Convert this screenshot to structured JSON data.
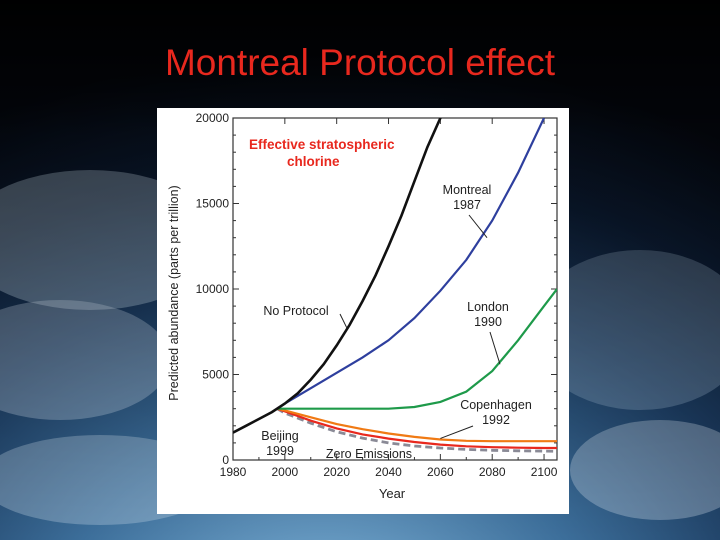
{
  "slide": {
    "title": "Montreal Protocol effect"
  },
  "colors": {
    "title": "#e8281e",
    "chart_title": "#e8281e"
  },
  "chart_data": {
    "type": "line",
    "title": "Effective stratospheric chlorine",
    "xlabel": "Year",
    "ylabel": "Predicted abundance (parts per trillion)",
    "xlim": [
      1980,
      2105
    ],
    "ylim": [
      0,
      20000
    ],
    "x_ticks": [
      "1980",
      "2000",
      "2020",
      "2040",
      "2060",
      "2080",
      "2100"
    ],
    "y_ticks": [
      "0",
      "5000",
      "10000",
      "15000",
      "20000"
    ],
    "series": [
      {
        "name": "No Protocol",
        "color": "#111111",
        "x": [
          1980,
          1985,
          1990,
          1995,
          2000,
          2005,
          2010,
          2015,
          2020,
          2025,
          2030,
          2035,
          2040,
          2045,
          2050,
          2055,
          2060,
          2063
        ],
        "y": [
          1600,
          2000,
          2400,
          2800,
          3300,
          3900,
          4700,
          5600,
          6700,
          7900,
          9300,
          10800,
          12500,
          14300,
          16300,
          18300,
          20000,
          21000
        ]
      },
      {
        "name": "Montreal 1987",
        "color": "#2e3f9e",
        "x": [
          1997,
          2000,
          2010,
          2020,
          2030,
          2040,
          2050,
          2060,
          2070,
          2080,
          2090,
          2100
        ],
        "y": [
          3000,
          3300,
          4200,
          5100,
          6000,
          7000,
          8300,
          9900,
          11700,
          14000,
          16800,
          20000
        ]
      },
      {
        "name": "London 1990",
        "color": "#1e9a4a",
        "x": [
          1997,
          2000,
          2010,
          2020,
          2030,
          2040,
          2050,
          2060,
          2070,
          2080,
          2090,
          2100,
          2105
        ],
        "y": [
          3000,
          3000,
          3000,
          3000,
          3000,
          3000,
          3100,
          3400,
          4000,
          5200,
          7000,
          9000,
          10000
        ]
      },
      {
        "name": "Copenhagen 1992",
        "color": "#f07a14",
        "x": [
          1997,
          2000,
          2010,
          2020,
          2030,
          2040,
          2050,
          2060,
          2070,
          2080,
          2090,
          2100,
          2105
        ],
        "y": [
          3000,
          2900,
          2500,
          2100,
          1800,
          1550,
          1350,
          1200,
          1120,
          1100,
          1100,
          1100,
          1100
        ]
      },
      {
        "name": "Beijing 1999",
        "color": "#e8281e",
        "x": [
          1997,
          2000,
          2010,
          2020,
          2030,
          2040,
          2050,
          2060,
          2070,
          2080,
          2090,
          2100,
          2105
        ],
        "y": [
          3000,
          2850,
          2300,
          1850,
          1500,
          1250,
          1050,
          900,
          800,
          750,
          720,
          700,
          700
        ]
      },
      {
        "name": "Zero Emissions",
        "color": "#8a8a96",
        "dashed": true,
        "x": [
          1997,
          2000,
          2010,
          2020,
          2030,
          2040,
          2050,
          2060,
          2070,
          2080,
          2090,
          2100,
          2105
        ],
        "y": [
          3000,
          2750,
          2150,
          1650,
          1280,
          1000,
          820,
          700,
          620,
          570,
          540,
          520,
          510
        ]
      }
    ],
    "annotations": {
      "no_protocol": "No Protocol",
      "montreal": [
        "Montreal",
        "1987"
      ],
      "london": [
        "London",
        "1990"
      ],
      "copenhagen": [
        "Copenhagen",
        "1992"
      ],
      "beijing": [
        "Beijing",
        "1999"
      ],
      "zero": "Zero Emissions"
    }
  }
}
